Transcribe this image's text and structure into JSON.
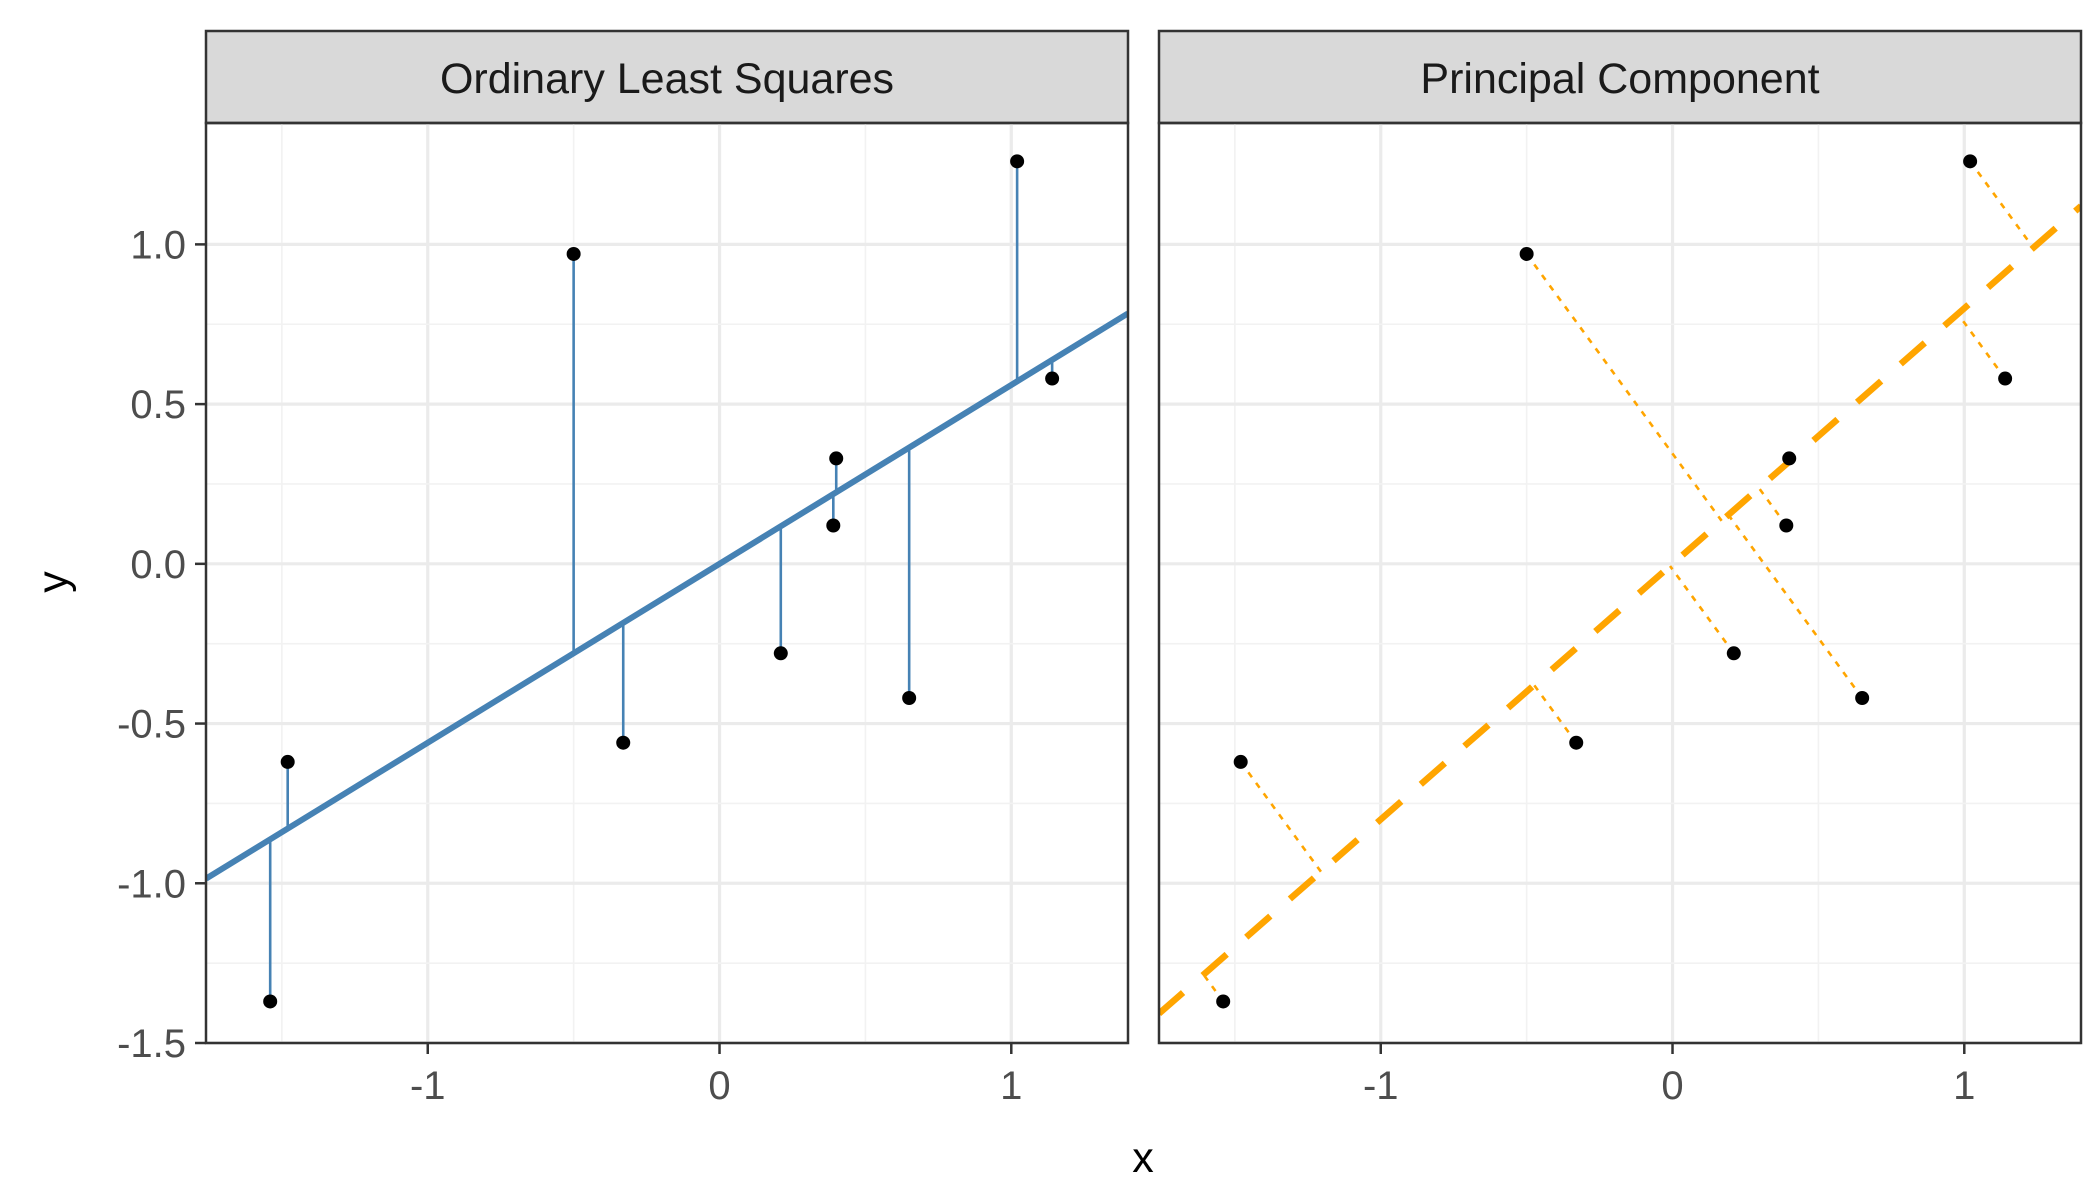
{
  "chart_data": {
    "type": "scatter",
    "xlabel": "x",
    "ylabel": "y",
    "xlim": [
      -1.76,
      1.4
    ],
    "ylim": [
      -1.5,
      1.38
    ],
    "x_ticks": [
      -1,
      0,
      1
    ],
    "x_tick_labels": [
      "-1",
      "0",
      "1"
    ],
    "y_ticks": [
      -1.5,
      -1.0,
      -0.5,
      0.0,
      0.5,
      1.0
    ],
    "y_tick_labels": [
      "-1.5",
      "-1.0",
      "-0.5",
      "0.0",
      "0.5",
      "1.0"
    ],
    "grid": true,
    "colors": {
      "ols": "#4682B4",
      "pca": "#FFA500",
      "point": "#000000",
      "strip_bg": "#D9D9D9"
    },
    "points": {
      "x": [
        -1.54,
        -1.48,
        -0.5,
        -0.33,
        0.21,
        0.4,
        0.39,
        0.65,
        1.02,
        1.14
      ],
      "y": [
        -1.37,
        -0.62,
        0.97,
        -0.56,
        -0.28,
        0.33,
        0.12,
        -0.42,
        1.26,
        0.58
      ]
    },
    "panels": [
      {
        "title": "Ordinary Least Squares",
        "fit": {
          "intercept": 0.0,
          "slope": 0.56,
          "linetype": "solid"
        },
        "residuals": "vertical"
      },
      {
        "title": "Principal Component",
        "fit": {
          "intercept": 0.0,
          "slope": 0.8,
          "linetype": "dashed"
        },
        "residuals": "orthogonal"
      }
    ]
  }
}
